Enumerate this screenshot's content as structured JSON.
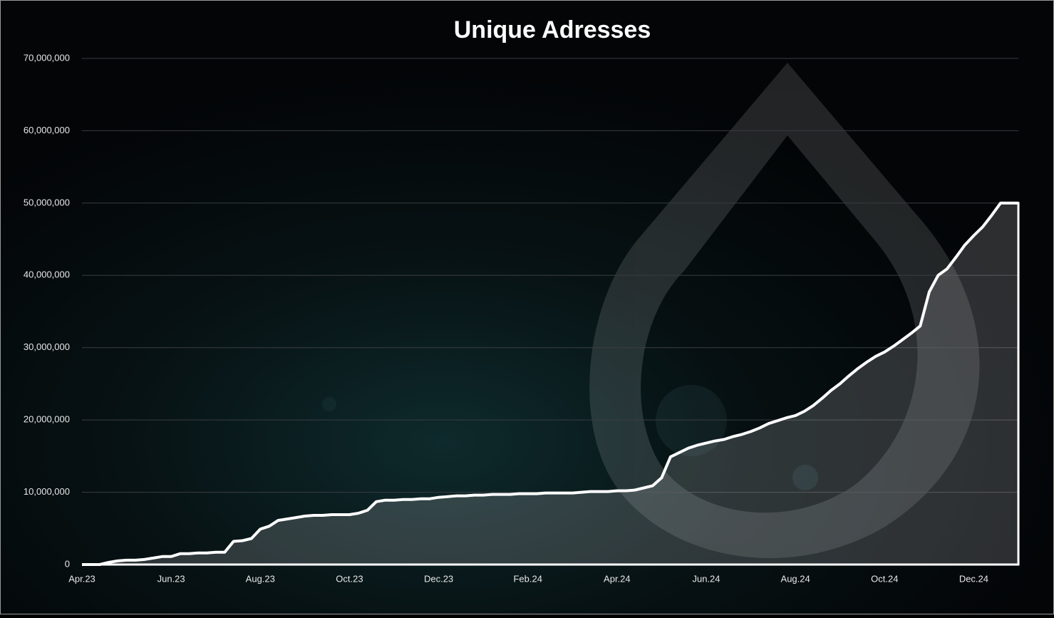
{
  "chart_data": {
    "type": "area",
    "title": "Unique Adresses",
    "categories": [
      "Apr.23",
      null,
      null,
      null,
      null,
      null,
      null,
      null,
      null,
      null,
      "Jun.23",
      null,
      null,
      null,
      null,
      null,
      null,
      null,
      null,
      null,
      "Aug.23",
      null,
      null,
      null,
      null,
      null,
      null,
      null,
      null,
      null,
      "Oct.23",
      null,
      null,
      null,
      null,
      null,
      null,
      null,
      null,
      null,
      "Dec.23",
      null,
      null,
      null,
      null,
      null,
      null,
      null,
      null,
      null,
      "Feb.24",
      null,
      null,
      null,
      null,
      null,
      null,
      null,
      null,
      null,
      "Apr.24",
      null,
      null,
      null,
      null,
      null,
      null,
      null,
      null,
      null,
      "Jun.24",
      null,
      null,
      null,
      null,
      null,
      null,
      null,
      null,
      null,
      "Aug.24",
      null,
      null,
      null,
      null,
      null,
      null,
      null,
      null,
      null,
      "Oct.24",
      null,
      null,
      null,
      null,
      null,
      null,
      null,
      null,
      null,
      "Dec.24",
      null,
      null,
      null,
      null,
      null
    ],
    "values": [
      0,
      0,
      0,
      300000,
      500000,
      600000,
      600000,
      700000,
      900000,
      1100000,
      1100000,
      1500000,
      1500000,
      1600000,
      1600000,
      1700000,
      1700000,
      3200000,
      3300000,
      3600000,
      4900000,
      5300000,
      6100000,
      6300000,
      6500000,
      6700000,
      6800000,
      6800000,
      6900000,
      6900000,
      6900000,
      7100000,
      7500000,
      8700000,
      8900000,
      8900000,
      9000000,
      9000000,
      9100000,
      9100000,
      9300000,
      9400000,
      9500000,
      9500000,
      9600000,
      9600000,
      9700000,
      9700000,
      9700000,
      9800000,
      9800000,
      9800000,
      9900000,
      9900000,
      9900000,
      9900000,
      10000000,
      10100000,
      10100000,
      10100000,
      10200000,
      10200000,
      10300000,
      10600000,
      10900000,
      12000000,
      14900000,
      15500000,
      16100000,
      16500000,
      16800000,
      17100000,
      17300000,
      17700000,
      18000000,
      18400000,
      18900000,
      19500000,
      19900000,
      20300000,
      20600000,
      21200000,
      22000000,
      23000000,
      24100000,
      25000000,
      26100000,
      27100000,
      28000000,
      28800000,
      29400000,
      30200000,
      31100000,
      32000000,
      33000000,
      37700000,
      40000000,
      40900000,
      42500000,
      44200000,
      45500000,
      46700000,
      48300000,
      50000000,
      50000000,
      50000000
    ],
    "color": "#ffffff",
    "ylim": [
      0,
      70000000
    ],
    "yticks": [
      0,
      {
        "value": 10000000,
        "label": "10,000,000"
      },
      {
        "value": 20000000,
        "label": "20,000,000"
      },
      {
        "value": 30000000,
        "label": "30,000,000"
      },
      {
        "value": 40000000,
        "label": "40,000,000"
      },
      {
        "value": 50000000,
        "label": "50,000,000"
      },
      {
        "value": 60000000,
        "label": "60,000,000"
      },
      {
        "value": 70000000,
        "label": "70,000,000"
      }
    ],
    "grid": true
  }
}
